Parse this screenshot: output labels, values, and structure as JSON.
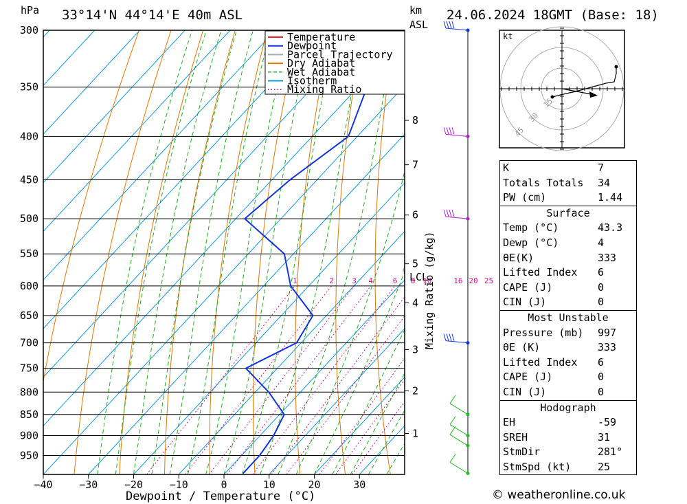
{
  "header": {
    "units": "hPa",
    "location": "33°14'N 44°14'E 40m ASL",
    "km_label": "km",
    "asl_label": "ASL",
    "datetime": "24.06.2024 18GMT (Base: 18)"
  },
  "chart_data": {
    "type": "line",
    "xlabel": "Dewpoint / Temperature (°C)",
    "ylabel": "hPa",
    "mixing_ratio_axis_label": "Mixing Ratio (g/kg)",
    "pressure_levels": [
      300,
      350,
      400,
      450,
      500,
      550,
      600,
      650,
      700,
      750,
      800,
      850,
      900,
      950
    ],
    "x_ticks": [
      -40,
      -30,
      -20,
      -10,
      0,
      10,
      20,
      30
    ],
    "xlim": [
      -40,
      40
    ],
    "ylim": [
      1000,
      300
    ],
    "km_ticks": [
      {
        "label": "8",
        "p": 383
      },
      {
        "label": "7",
        "p": 432
      },
      {
        "label": "6",
        "p": 495
      },
      {
        "label": "5",
        "p": 565
      },
      {
        "label": "4",
        "p": 628
      },
      {
        "label": "3",
        "p": 713
      },
      {
        "label": "2",
        "p": 797
      },
      {
        "label": "1",
        "p": 895
      }
    ],
    "lcl": {
      "label": "LCL",
      "p": 575
    },
    "mixing_ratio_labels": [
      "1",
      "2",
      "3",
      "4",
      "6",
      "8",
      "10",
      "16",
      "20",
      "25"
    ],
    "mixing_ratio_values": [
      1,
      2,
      3,
      4,
      6,
      8,
      10,
      16,
      20,
      25
    ],
    "legend": [
      {
        "name": "Temperature",
        "color": "#ee2222",
        "style": "solid"
      },
      {
        "name": "Dewpoint",
        "color": "#1133dd",
        "style": "solid"
      },
      {
        "name": "Parcel Trajectory",
        "color": "#aaaaaa",
        "style": "solid"
      },
      {
        "name": "Dry Adiabat",
        "color": "#dd7700",
        "style": "solid"
      },
      {
        "name": "Wet Adiabat",
        "color": "#22aa22",
        "style": "dashed"
      },
      {
        "name": "Isotherm",
        "color": "#1199dd",
        "style": "solid"
      },
      {
        "name": "Mixing Ratio",
        "color": "#cc1188",
        "style": "dotted"
      }
    ],
    "series": [
      {
        "name": "Temperature",
        "color": "#ee2222",
        "points": [
          [
            43.3,
            997
          ],
          [
            35,
            920
          ],
          [
            30,
            850
          ],
          [
            27,
            800
          ],
          [
            23.5,
            750
          ],
          [
            20,
            700
          ],
          [
            15,
            650
          ],
          [
            12,
            600
          ],
          [
            8,
            550
          ],
          [
            4.5,
            500
          ],
          [
            1.5,
            450
          ],
          [
            -3.5,
            400
          ],
          [
            -10,
            365
          ]
        ]
      },
      {
        "name": "Dewpoint",
        "color": "#1133dd",
        "points": [
          [
            4,
            997
          ],
          [
            4,
            950
          ],
          [
            3,
            900
          ],
          [
            1,
            850
          ],
          [
            -7,
            800
          ],
          [
            -17,
            750
          ],
          [
            -11,
            700
          ],
          [
            -13,
            650
          ],
          [
            -24,
            600
          ],
          [
            -32,
            550
          ],
          [
            -48,
            500
          ],
          [
            -46,
            450
          ],
          [
            -42,
            400
          ],
          [
            -48,
            350
          ],
          [
            -59,
            300
          ]
        ]
      },
      {
        "name": "Parcel Trajectory",
        "color": "#aaaaaa",
        "points": [
          [
            43.3,
            997
          ],
          [
            36,
            920
          ],
          [
            29,
            850
          ],
          [
            25,
            800
          ],
          [
            21.5,
            750
          ],
          [
            15.5,
            700
          ],
          [
            9.5,
            650
          ],
          [
            3.5,
            600
          ],
          [
            -2.3,
            575
          ],
          [
            -4,
            550
          ],
          [
            -9,
            500
          ],
          [
            -15.5,
            450
          ],
          [
            -22.5,
            400
          ],
          [
            -31,
            350
          ],
          [
            -40,
            310
          ]
        ]
      }
    ],
    "wind_barbs_p": [
      300,
      400,
      500,
      700,
      850,
      900,
      925,
      997
    ],
    "hodograph": {
      "unit_label": "kt",
      "ring_labels": [
        "15",
        "30",
        "45"
      ],
      "trace": [
        [
          115,
          48
        ],
        [
          115,
          58
        ],
        [
          112,
          70
        ],
        [
          100,
          72
        ],
        [
          78,
          78
        ],
        [
          56,
          84
        ],
        [
          38,
          88
        ],
        [
          22,
          92
        ]
      ]
    }
  },
  "indices": {
    "k_label": "K",
    "k": "7",
    "tt_label": "Totals Totals",
    "tt": "34",
    "pw_label": "PW (cm)",
    "pw": "1.44"
  },
  "surface": {
    "title": "Surface",
    "temp_label": "Temp (°C)",
    "temp": "43.3",
    "dewp_label": "Dewp (°C)",
    "dewp": "4",
    "theta_e_label": "θE(K)",
    "theta_e": "333",
    "li_label": "Lifted Index",
    "li": "6",
    "cape_label": "CAPE (J)",
    "cape": "0",
    "cin_label": "CIN (J)",
    "cin": "0"
  },
  "most_unstable": {
    "title": "Most Unstable",
    "pressure_label": "Pressure (mb)",
    "pressure": "997",
    "theta_e_label": "θE (K)",
    "theta_e": "333",
    "li_label": "Lifted Index",
    "li": "6",
    "cape_label": "CAPE (J)",
    "cape": "0",
    "cin_label": "CIN (J)",
    "cin": "0"
  },
  "hodograph_stats": {
    "title": "Hodograph",
    "eh_label": "EH",
    "eh": "-59",
    "sreh_label": "SREH",
    "sreh": "31",
    "stmdir_label": "StmDir",
    "stmdir": "281°",
    "stmspd_label": "StmSpd (kt)",
    "stmspd": "25"
  },
  "credit": "© weatheronline.co.uk"
}
